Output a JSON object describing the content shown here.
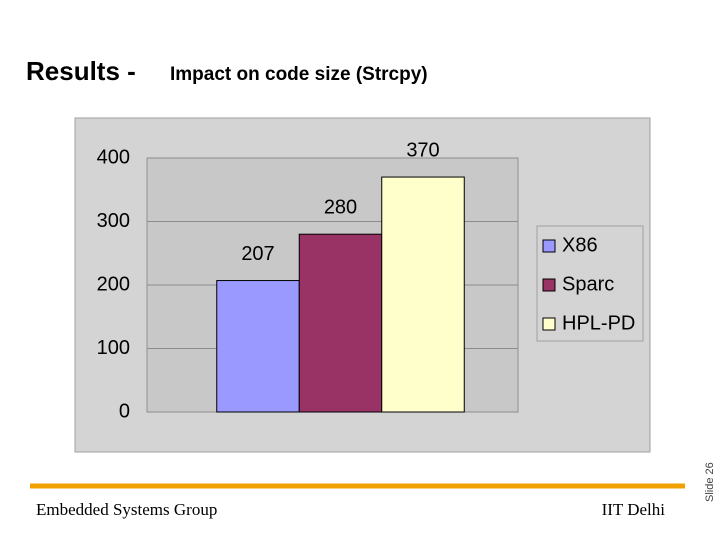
{
  "title": "Results -",
  "subtitle": "Impact on code size (Strcpy)",
  "footer": {
    "left": "Embedded Systems Group",
    "right": "IIT Delhi",
    "slide": "Slide 26"
  },
  "chart_data": {
    "type": "bar",
    "categories": [
      null
    ],
    "series": [
      {
        "name": "X86",
        "color": "#9999ff",
        "values": [
          207
        ]
      },
      {
        "name": "Sparc",
        "color": "#993366",
        "values": [
          280
        ]
      },
      {
        "name": "HPL-PD",
        "color": "#ffffcc",
        "values": [
          370
        ]
      }
    ],
    "ylim": [
      0,
      400
    ],
    "yticks": [
      0,
      100,
      200,
      300,
      400
    ],
    "grid": true,
    "legend": "right"
  }
}
